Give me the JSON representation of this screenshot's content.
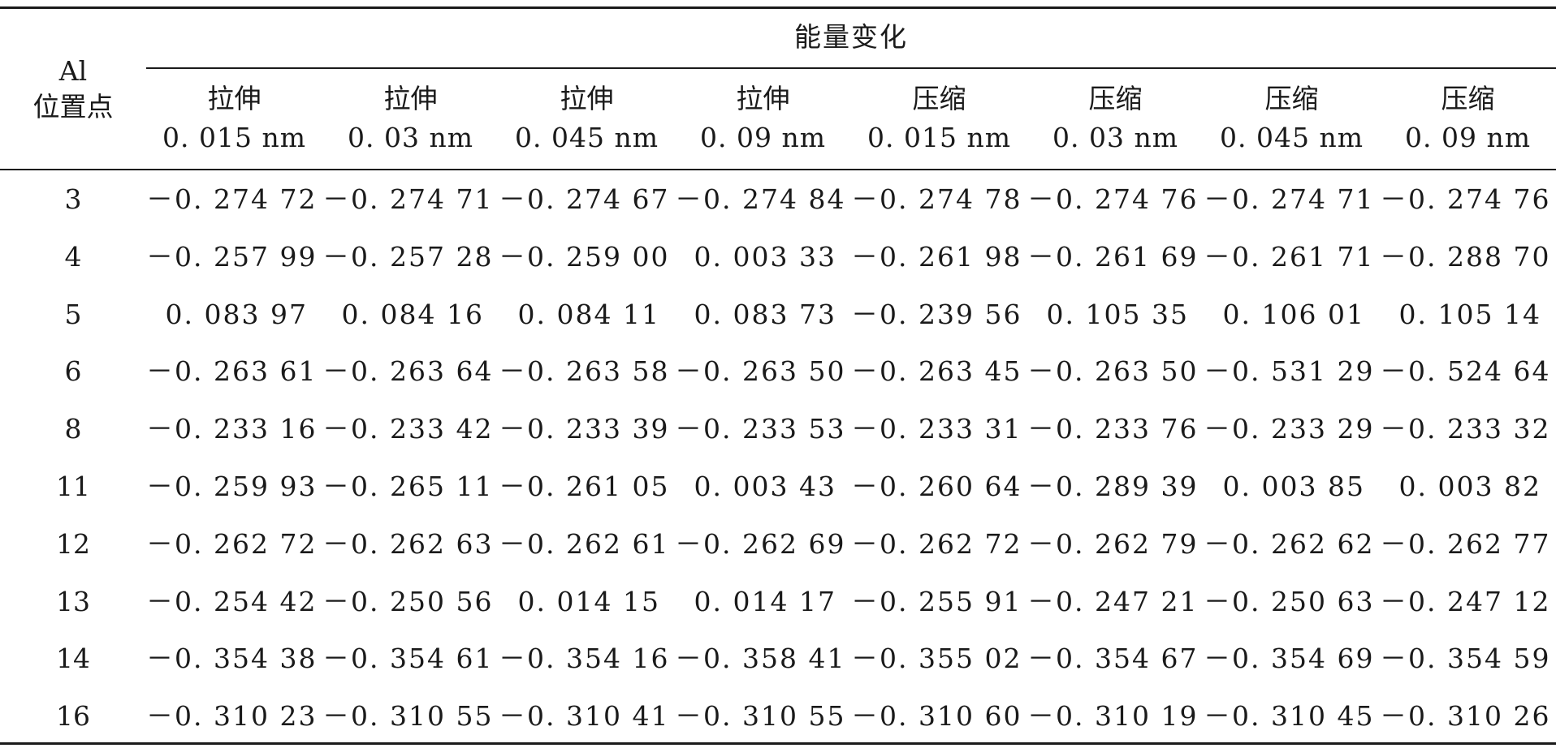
{
  "table": {
    "group_header": "能量变化",
    "stub_header": [
      "Al",
      "位置点"
    ],
    "columns": [
      {
        "type": "拉伸",
        "amount": "0. 015 nm"
      },
      {
        "type": "拉伸",
        "amount": "0. 03 nm"
      },
      {
        "type": "拉伸",
        "amount": "0. 045 nm"
      },
      {
        "type": "拉伸",
        "amount": "0. 09 nm"
      },
      {
        "type": "压缩",
        "amount": "0. 015 nm"
      },
      {
        "type": "压缩",
        "amount": "0. 03 nm"
      },
      {
        "type": "压缩",
        "amount": "0. 045 nm"
      },
      {
        "type": "压缩",
        "amount": "0. 09 nm"
      }
    ],
    "rows": [
      {
        "site": "3",
        "values": [
          "－0. 274 72",
          "－0. 274 71",
          "－0. 274 67",
          "－0. 274 84",
          "－0. 274 78",
          "－0. 274 76",
          "－0. 274 71",
          "－0. 274 76"
        ]
      },
      {
        "site": "4",
        "values": [
          "－0. 257 99",
          "－0. 257 28",
          "－0. 259 00",
          "0. 003 33",
          "－0. 261 98",
          "－0. 261 69",
          "－0. 261 71",
          "－0. 288 70"
        ]
      },
      {
        "site": "5",
        "values": [
          "0. 083 97",
          "0. 084 16",
          "0. 084 11",
          "0. 083 73",
          "－0. 239 56",
          "0. 105 35",
          "0. 106 01",
          "0. 105 14"
        ]
      },
      {
        "site": "6",
        "values": [
          "－0. 263 61",
          "－0. 263 64",
          "－0. 263 58",
          "－0. 263 50",
          "－0. 263 45",
          "－0. 263 50",
          "－0. 531 29",
          "－0. 524 64"
        ]
      },
      {
        "site": "8",
        "values": [
          "－0. 233 16",
          "－0. 233 42",
          "－0. 233 39",
          "－0. 233 53",
          "－0. 233 31",
          "－0. 233 76",
          "－0. 233 29",
          "－0. 233 32"
        ]
      },
      {
        "site": "11",
        "values": [
          "－0. 259 93",
          "－0. 265 11",
          "－0. 261 05",
          "0. 003 43",
          "－0. 260 64",
          "－0. 289 39",
          "0. 003 85",
          "0. 003 82"
        ]
      },
      {
        "site": "12",
        "values": [
          "－0. 262 72",
          "－0. 262 63",
          "－0. 262 61",
          "－0. 262 69",
          "－0. 262 72",
          "－0. 262 79",
          "－0. 262 62",
          "－0. 262 77"
        ]
      },
      {
        "site": "13",
        "values": [
          "－0. 254 42",
          "－0. 250 56",
          "0. 014 15",
          "0. 014 17",
          "－0. 255 91",
          "－0. 247 21",
          "－0. 250 63",
          "－0. 247 12"
        ]
      },
      {
        "site": "14",
        "values": [
          "－0. 354 38",
          "－0. 354 61",
          "－0. 354 16",
          "－0. 358 41",
          "－0. 355 02",
          "－0. 354 67",
          "－0. 354 69",
          "－0. 354 59"
        ]
      },
      {
        "site": "16",
        "values": [
          "－0. 310 23",
          "－0. 310 55",
          "－0. 310 41",
          "－0. 310 55",
          "－0. 310 60",
          "－0. 310 19",
          "－0. 310 45",
          "－0. 310 26"
        ]
      }
    ]
  }
}
